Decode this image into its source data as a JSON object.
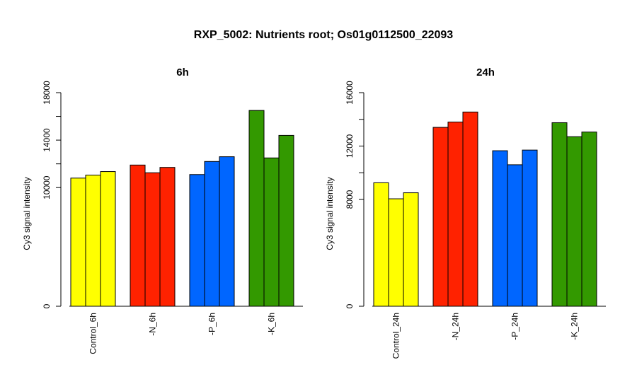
{
  "title": "RXP_5002: Nutrients root; Os01g0112500_22093",
  "colors": {
    "Control": "#ffff00",
    "N": "#ff2200",
    "P": "#0066ff",
    "K": "#339900"
  },
  "chart_data": [
    {
      "type": "bar",
      "title": "6h",
      "ylabel": "Cy3 signal intensity",
      "ylim": [
        0,
        18000
      ],
      "yticks": [
        "0",
        "10000",
        "14000",
        "18000"
      ],
      "ytick_values": [
        0,
        10000,
        14000,
        18000
      ],
      "minor_ticks": [
        12000,
        16000
      ],
      "categories": [
        "Control_6h",
        "-N_6h",
        "-P_6h",
        "-K_6h"
      ],
      "series_colors": [
        "#ffff00",
        "#ff2200",
        "#0066ff",
        "#339900"
      ],
      "values": [
        [
          10800,
          11050,
          11350
        ],
        [
          11900,
          11250,
          11700
        ],
        [
          11100,
          12200,
          12600
        ],
        [
          16500,
          12500,
          14400
        ]
      ]
    },
    {
      "type": "bar",
      "title": "24h",
      "ylabel": "Cy3 signal intensity",
      "ylim": [
        0,
        16000
      ],
      "yticks": [
        "0",
        "8000",
        "12000",
        "16000"
      ],
      "ytick_values": [
        0,
        8000,
        12000,
        16000
      ],
      "minor_ticks": [
        10000,
        14000
      ],
      "categories": [
        "Control_24h",
        "-N_24h",
        "-P_24h",
        "-K_24h"
      ],
      "series_colors": [
        "#ffff00",
        "#ff2200",
        "#0066ff",
        "#339900"
      ],
      "values": [
        [
          9250,
          8050,
          8500
        ],
        [
          13400,
          13800,
          14550
        ],
        [
          11650,
          10600,
          11700
        ],
        [
          13750,
          12700,
          13050
        ]
      ]
    }
  ]
}
